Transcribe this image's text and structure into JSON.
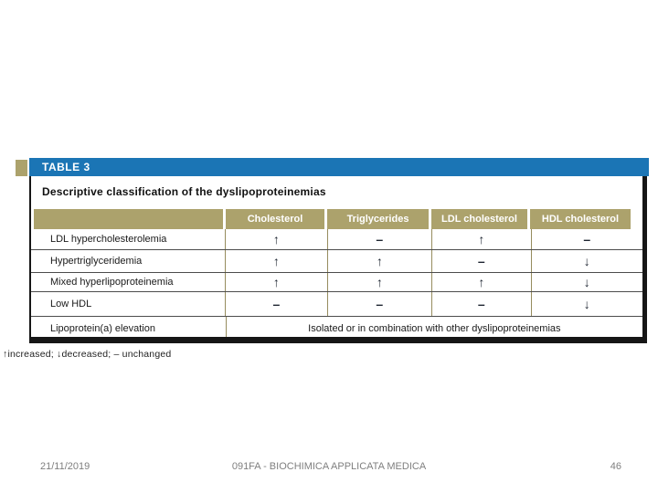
{
  "colors": {
    "banner_blue": "#1b75b5",
    "header_olive": "#aca26c",
    "frame_black": "#161616",
    "footer_gray": "#7f7f7f"
  },
  "table_figure": {
    "banner_label": "TABLE 3",
    "title": "Descriptive classification of the dyslipoproteinemias",
    "columns": [
      "Cholesterol",
      "Triglycerides",
      "LDL cholesterol",
      "HDL cholesterol"
    ],
    "rows": [
      {
        "label": "LDL hypercholesterolemia",
        "cells": [
          "↑",
          "–",
          "↑",
          "–"
        ]
      },
      {
        "label": "Hypertriglyceridemia",
        "cells": [
          "↑",
          "↑",
          "–",
          "↓"
        ]
      },
      {
        "label": "Mixed hyperlipoproteinemia",
        "cells": [
          "↑",
          "↑",
          "↑",
          "↓"
        ]
      },
      {
        "label": "Low HDL",
        "cells": [
          "–",
          "–",
          "–",
          "↓"
        ]
      },
      {
        "label": "Lipoprotein(a) elevation",
        "merged_note": "Isolated or in combination with other dyslipoproteinemias"
      }
    ],
    "footnote": "↑increased; ↓decreased; – unchanged"
  },
  "footer": {
    "date": "21/11/2019",
    "course": "091FA - BIOCHIMICA APPLICATA MEDICA",
    "page_number": "46"
  }
}
